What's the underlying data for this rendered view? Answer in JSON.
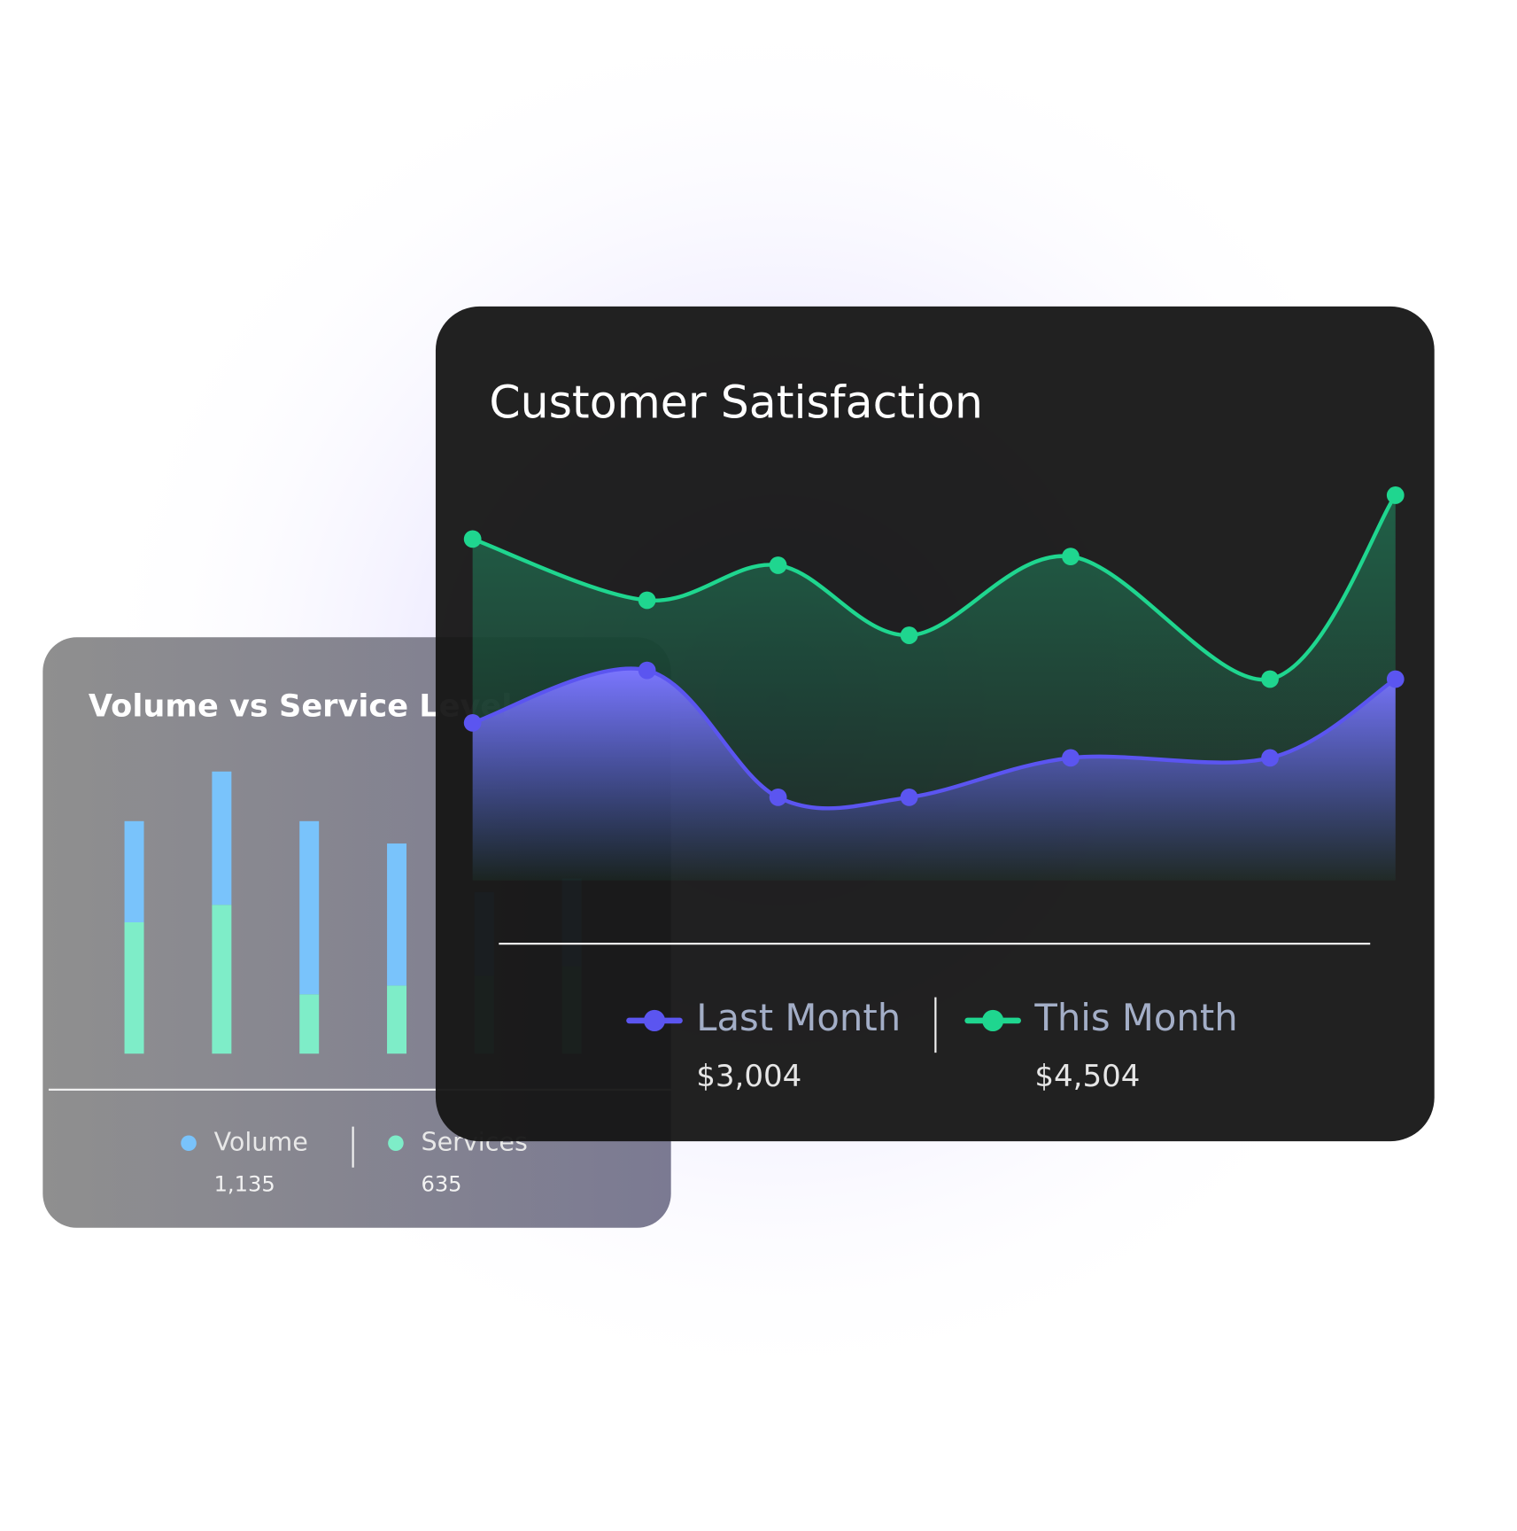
{
  "chart_data": [
    {
      "type": "area",
      "title": "Customer Satisfaction",
      "x": [
        0,
        18.9,
        33.1,
        47.3,
        64.8,
        86.4,
        100
      ],
      "xlim": [
        0,
        100
      ],
      "ylim": [
        0,
        100
      ],
      "series": [
        {
          "name": "Last Month",
          "summary": "$3,004",
          "color": "#5b55f0",
          "values": [
            36,
            48,
            19,
            19,
            28,
            28,
            46
          ]
        },
        {
          "name": "This Month",
          "summary": "$4,504",
          "color": "#1fd68f",
          "values": [
            78,
            64,
            72,
            56,
            74,
            46,
            88
          ]
        }
      ]
    },
    {
      "type": "stacked_bar",
      "title": "Volume vs Service Level",
      "categories": [
        null,
        null,
        null,
        null,
        null,
        null
      ],
      "ylim": [
        0,
        300
      ],
      "series": [
        {
          "name": "Services",
          "summary": "635",
          "color": "#7eedc8",
          "values": [
            135,
            153,
            61,
            70,
            80,
            90
          ]
        },
        {
          "name": "Volume",
          "summary": "1,135",
          "color": "#79c3fb",
          "values": [
            104,
            137,
            178,
            146,
            86,
            90
          ]
        }
      ]
    }
  ]
}
